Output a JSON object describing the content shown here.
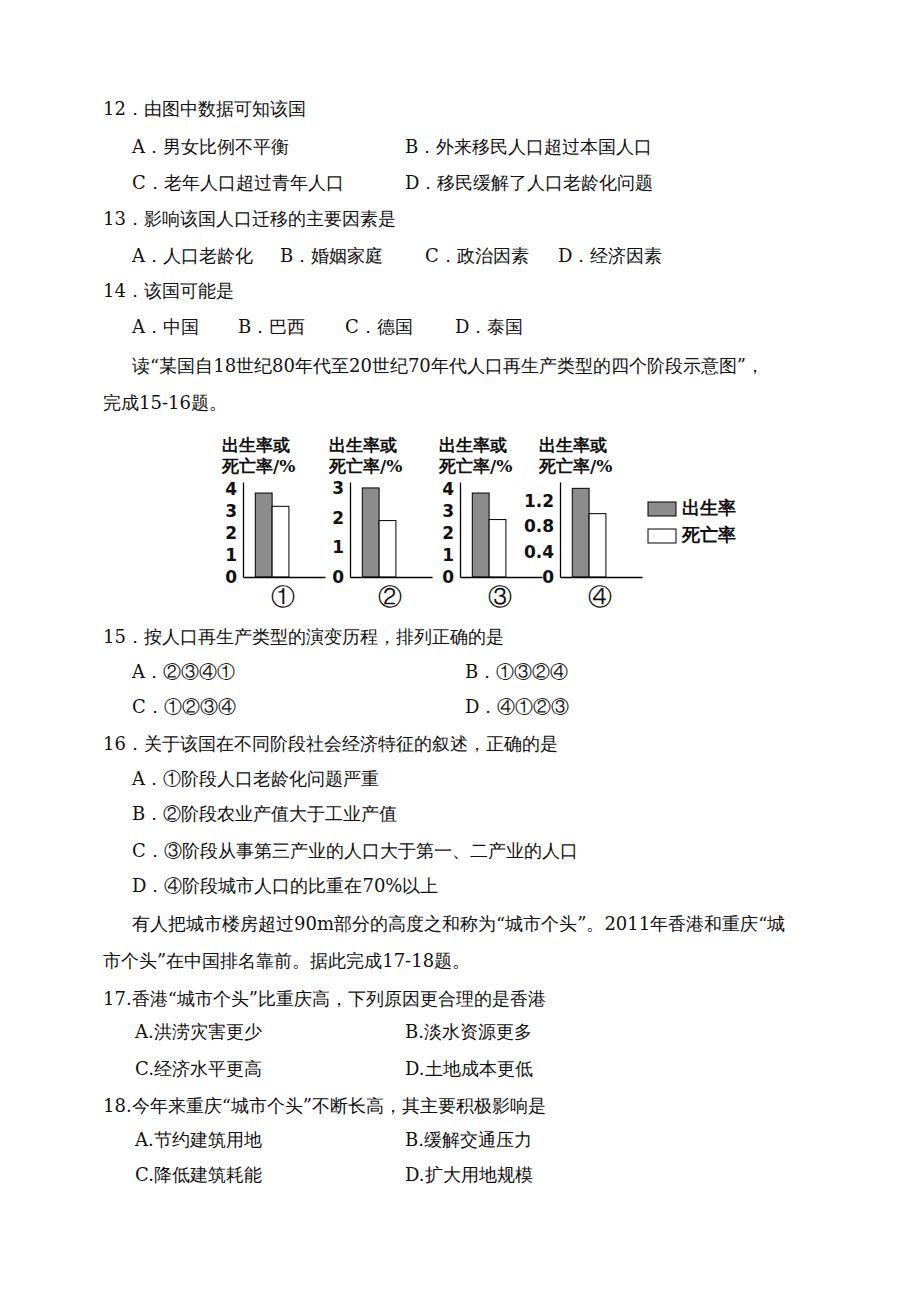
{
  "items": [
    {
      "stem": "12．由图中数据可知该国",
      "options": [
        "A．男女比例不平衡",
        "B．外来移民人口超过本国人口",
        "C．老年人口超过青年人口",
        "D．移民缓解了人口老龄化问题"
      ]
    },
    {
      "stem": "13．影响该国人口迁移的主要因素是",
      "options": [
        "A．人口老龄化",
        "B．婚姻家庭",
        "C．政治因素",
        "D．经济因素"
      ]
    },
    {
      "stem": "14．该国可能是",
      "options": [
        "A．中国",
        "B．巴西",
        "C．德国",
        "D．泰国"
      ]
    },
    {
      "lines": [
        "读“某国自18世纪80年代至20世纪70年代人口再生产类型的四个阶段示意图”，",
        "完成15-16题。"
      ]
    },
    {
      "stem": "15．按人口再生产类型的演变历程，排列正确的是",
      "options": [
        "A．②③④①",
        "B．①③②④",
        "C．①②③④",
        "D．④①②③"
      ]
    },
    {
      "stem": "16．关于该国在不同阶段社会经济特征的叙述，正确的是",
      "options": [
        "A．①阶段人口老龄化问题严重",
        "B．②阶段农业产值大于工业产值",
        "C．③阶段从事第三产业的人口大于第一、二产业的人口",
        "D．④阶段城市人口的比重在70%以上"
      ]
    },
    {
      "lines": [
        "有人把城市楼房超过90m部分的高度之和称为“城市个头”。2011年香港和重庆“城",
        "市个头”在中国排名靠前。据此完成17-18题。"
      ]
    },
    {
      "stem": "17.香港“城市个头”比重庆高，下列原因更合理的是香港",
      "options": [
        "A.洪涝灾害更少",
        "B.淡水资源更多",
        "C.经济水平更高",
        "D.土地成本更低"
      ]
    },
    {
      "stem": "18.今年来重庆“城市个头”不断长高，其主要积极影响是",
      "options": [
        "A.节约建筑用地",
        "B.缓解交通压力",
        "C.降低建筑耗能",
        "D.扩大用地规模"
      ]
    }
  ],
  "chart_data": [
    {
      "type": "bar",
      "title": "①",
      "ylabel": [
        "出生率或",
        "死亡率/%"
      ],
      "categories": [
        null
      ],
      "series": [
        {
          "name": "出生率",
          "color": "#8c8c8c",
          "values": [
            3.8
          ]
        },
        {
          "name": "死亡率",
          "color": "#ffffff",
          "values": [
            3.2
          ]
        }
      ],
      "ylim": [
        0,
        4.3
      ],
      "yticks": [
        0,
        1,
        2,
        3,
        4
      ],
      "tick_labels": "y",
      "legend": "right"
    },
    {
      "type": "bar",
      "title": "②",
      "ylabel": [
        "出生率或",
        "死亡率/%"
      ],
      "categories": [
        null
      ],
      "series": [
        {
          "color": "#8c8c8c",
          "values": [
            3.0
          ]
        },
        {
          "color": "#ffffff",
          "values": [
            1.9
          ]
        }
      ],
      "ylim": [
        0,
        3.2
      ],
      "yticks": [
        0,
        1,
        2,
        3
      ],
      "tick_labels": "y"
    },
    {
      "type": "bar",
      "title": "③",
      "ylabel": [
        "出生率或",
        "死亡率/%"
      ],
      "categories": [
        null
      ],
      "series": [
        {
          "color": "#8c8c8c",
          "values": [
            3.8
          ]
        },
        {
          "color": "#ffffff",
          "values": [
            2.6
          ]
        }
      ],
      "ylim": [
        0,
        4.3
      ],
      "yticks": [
        0,
        1,
        2,
        3,
        4
      ],
      "tick_labels": "y"
    },
    {
      "type": "bar",
      "title": "④",
      "ylabel": [
        "出生率或",
        "死亡率/%"
      ],
      "categories": [
        null
      ],
      "series": [
        {
          "color": "#8c8c8c",
          "values": [
            1.4
          ]
        },
        {
          "color": "#ffffff",
          "values": [
            1.0
          ]
        }
      ],
      "ylim": [
        0,
        1.5
      ],
      "yticks": [
        0,
        0.4,
        0.8,
        1.2
      ],
      "tick_labels": "y"
    }
  ]
}
